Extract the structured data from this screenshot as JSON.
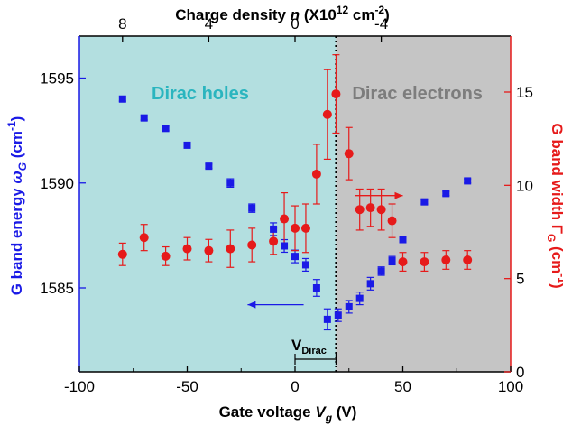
{
  "chart_data": {
    "type": "scatter",
    "title": "",
    "xlabel_prefix": "Gate voltage ",
    "xlabel_var": "V",
    "xlabel_sub": "g",
    "xlabel_suffix": " (V)",
    "top_xlabel_prefix": "Charge density ",
    "top_xlabel_var": "n",
    "top_xlabel_mid": " (X10",
    "top_xlabel_sup": "12",
    "top_xlabel_mid2": " cm",
    "top_xlabel_sup2": "-2",
    "top_xlabel_suffix": ")",
    "ylabel_left_prefix": "G band energy ",
    "ylabel_left_var": "ω",
    "ylabel_left_sub": "G",
    "ylabel_left_mid": " (cm",
    "ylabel_left_sup": "-1",
    "ylabel_left_suffix": ")",
    "ylabel_right_prefix": "G band width Γ",
    "ylabel_right_sub": "G",
    "ylabel_right_mid": " (cm",
    "ylabel_right_sup": "-1",
    "ylabel_right_suffix": ")",
    "xlim": [
      -100,
      100
    ],
    "ylim_left": [
      1581,
      1597
    ],
    "ylim_right": [
      0,
      18
    ],
    "top_xlim_ref": {
      "n_at_xmin": 10,
      "n_per_volt": -0.1
    },
    "x_ticks": [
      "-100",
      "-50",
      "0",
      "50",
      "100"
    ],
    "x_tick_values": [
      -100,
      -50,
      0,
      50,
      100
    ],
    "top_ticks": [
      "8",
      "4",
      "0",
      "-4"
    ],
    "top_tick_values": [
      8,
      4,
      0,
      -4
    ],
    "left_ticks": [
      "1585",
      "1590",
      "1595"
    ],
    "left_tick_values": [
      1585,
      1590,
      1595
    ],
    "right_ticks": [
      "0",
      "5",
      "10",
      "15"
    ],
    "right_tick_values": [
      0,
      5,
      10,
      15
    ],
    "dirac_voltage": 19,
    "dirac_label": "V",
    "dirac_label_sub": "Dirac",
    "regions": [
      {
        "label": "Dirac holes",
        "from": -100,
        "to": 19,
        "color": "#b3dfe0",
        "label_color": "#2ab5bf"
      },
      {
        "label": "Dirac electrons",
        "from": 19,
        "to": 100,
        "color": "#c5c5c5",
        "label_color": "#7d7d7d"
      }
    ],
    "series": [
      {
        "axis": "left",
        "marker": "square",
        "color": "#1a1ae6",
        "points": [
          {
            "x": -80,
            "y": 1594.0,
            "err": 0.1
          },
          {
            "x": -70,
            "y": 1593.1,
            "err": 0.1
          },
          {
            "x": -60,
            "y": 1592.6,
            "err": 0.1
          },
          {
            "x": -50,
            "y": 1591.8,
            "err": 0.1
          },
          {
            "x": -40,
            "y": 1590.8,
            "err": 0.1
          },
          {
            "x": -30,
            "y": 1590.0,
            "err": 0.2
          },
          {
            "x": -20,
            "y": 1588.8,
            "err": 0.2
          },
          {
            "x": -10,
            "y": 1587.8,
            "err": 0.3
          },
          {
            "x": -5,
            "y": 1587.0,
            "err": 0.3
          },
          {
            "x": 0,
            "y": 1586.5,
            "err": 0.3
          },
          {
            "x": 5,
            "y": 1586.1,
            "err": 0.3
          },
          {
            "x": 10,
            "y": 1585.0,
            "err": 0.4
          },
          {
            "x": 15,
            "y": 1583.5,
            "err": 0.5
          },
          {
            "x": 20,
            "y": 1583.7,
            "err": 0.3
          },
          {
            "x": 25,
            "y": 1584.1,
            "err": 0.3
          },
          {
            "x": 30,
            "y": 1584.5,
            "err": 0.3
          },
          {
            "x": 35,
            "y": 1585.2,
            "err": 0.3
          },
          {
            "x": 40,
            "y": 1585.8,
            "err": 0.2
          },
          {
            "x": 45,
            "y": 1586.3,
            "err": 0.2
          },
          {
            "x": 50,
            "y": 1587.3,
            "err": 0.1
          },
          {
            "x": 60,
            "y": 1589.1,
            "err": 0.1
          },
          {
            "x": 70,
            "y": 1589.5,
            "err": 0.1
          },
          {
            "x": 80,
            "y": 1590.1,
            "err": 0.1
          }
        ]
      },
      {
        "axis": "right",
        "marker": "circle",
        "color": "#e61a1a",
        "points": [
          {
            "x": -80,
            "y": 6.3,
            "err": 0.6
          },
          {
            "x": -70,
            "y": 7.2,
            "err": 0.7
          },
          {
            "x": -60,
            "y": 6.2,
            "err": 0.5
          },
          {
            "x": -50,
            "y": 6.6,
            "err": 0.6
          },
          {
            "x": -40,
            "y": 6.5,
            "err": 0.6
          },
          {
            "x": -30,
            "y": 6.6,
            "err": 1.0
          },
          {
            "x": -20,
            "y": 6.8,
            "err": 0.9
          },
          {
            "x": -10,
            "y": 7.0,
            "err": 0.7
          },
          {
            "x": -5,
            "y": 8.2,
            "err": 1.4
          },
          {
            "x": 0,
            "y": 7.7,
            "err": 1.2
          },
          {
            "x": 5,
            "y": 7.7,
            "err": 1.3
          },
          {
            "x": 10,
            "y": 10.6,
            "err": 1.6
          },
          {
            "x": 15,
            "y": 13.8,
            "err": 2.4
          },
          {
            "x": 19,
            "y": 14.9,
            "err": 2.1
          },
          {
            "x": 25,
            "y": 11.7,
            "err": 1.4
          },
          {
            "x": 30,
            "y": 8.7,
            "err": 1.1
          },
          {
            "x": 35,
            "y": 8.8,
            "err": 1.0
          },
          {
            "x": 40,
            "y": 8.7,
            "err": 1.1
          },
          {
            "x": 45,
            "y": 8.1,
            "err": 0.9
          },
          {
            "x": 50,
            "y": 5.9,
            "err": 0.5
          },
          {
            "x": 60,
            "y": 5.9,
            "err": 0.5
          },
          {
            "x": 70,
            "y": 6.0,
            "err": 0.5
          },
          {
            "x": 80,
            "y": 6.0,
            "err": 0.5
          }
        ]
      }
    ],
    "arrows": [
      {
        "from_x": 4,
        "to_x": -22,
        "y_left": 1584.2,
        "color": "#1a1ae6"
      },
      {
        "from_x": 28,
        "to_x": 50,
        "y_left": 1589.4,
        "color": "#e61a1a"
      }
    ],
    "colors": {
      "left_axis": "#1a1ae6",
      "right_axis": "#e61a1a",
      "dirac_line": "#000000"
    }
  }
}
